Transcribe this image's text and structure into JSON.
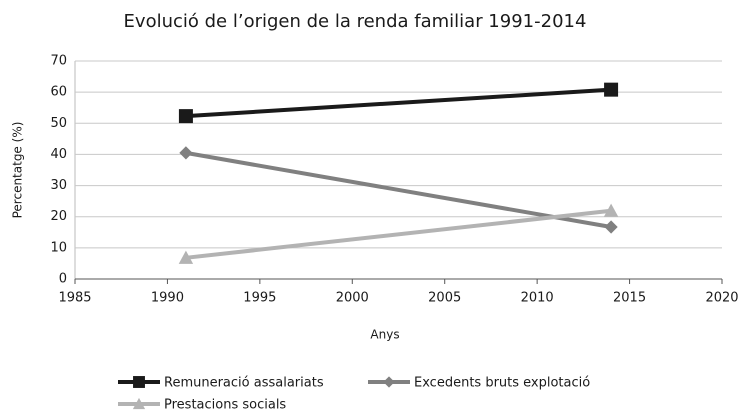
{
  "chart_data": {
    "type": "line",
    "title": "Evolució de l’origen de la renda familiar 1991-2014",
    "x_label": "Anys",
    "y_label": "Percentatge (%)",
    "x": [
      1991,
      2014
    ],
    "series": [
      {
        "name": "Remuneració assalariats",
        "color": "#1a1a1a",
        "marker": "square",
        "values": [
          52.3,
          60.8
        ]
      },
      {
        "name": "Excedents bruts explotació",
        "color": "#808080",
        "marker": "diamond",
        "values": [
          40.5,
          16.7
        ]
      },
      {
        "name": "Prestacions socials",
        "color": "#b3b3b3",
        "marker": "triangle",
        "values": [
          6.8,
          21.9
        ]
      }
    ],
    "xlim": [
      1985,
      2020
    ],
    "xticks": [
      1985,
      1990,
      1995,
      2000,
      2005,
      2010,
      2015,
      2020
    ],
    "ylim": [
      0,
      70
    ],
    "yticks": [
      0,
      10,
      20,
      30,
      40,
      50,
      60,
      70
    ],
    "grid": true,
    "legend": "bottom"
  }
}
